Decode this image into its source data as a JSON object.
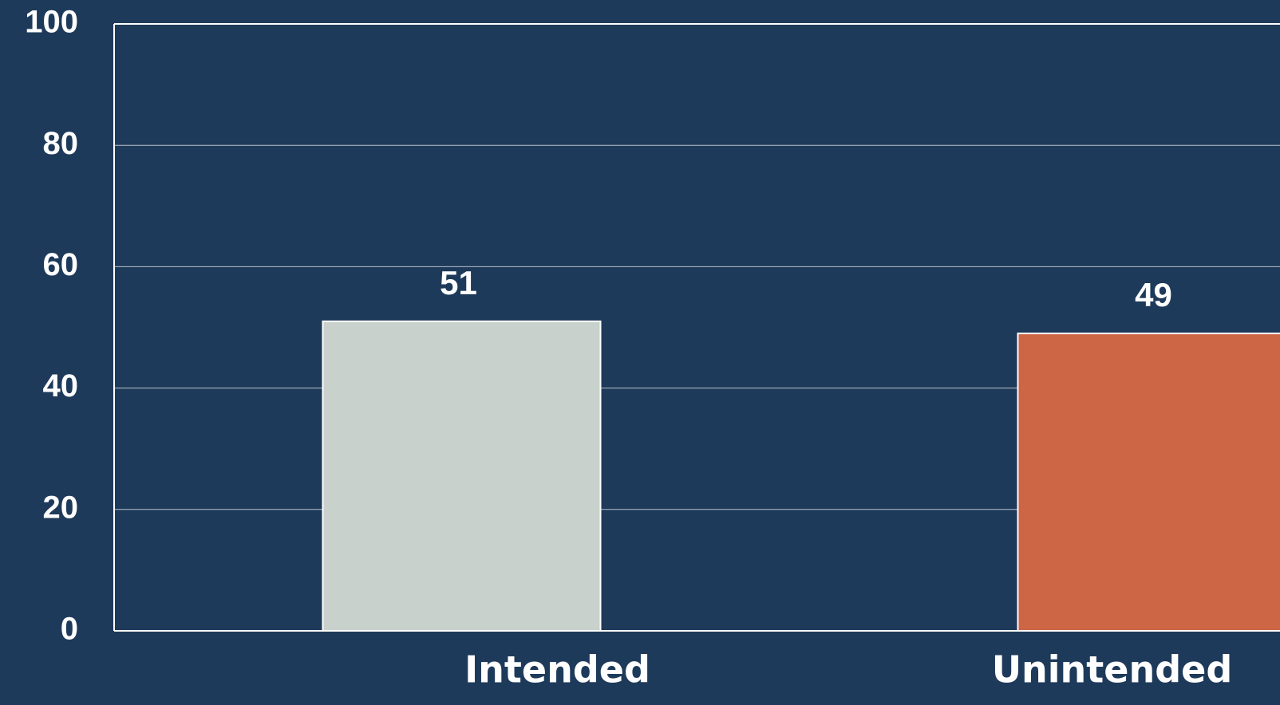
{
  "chart_data": {
    "type": "bar",
    "categories": [
      "Intended",
      "Unintended"
    ],
    "values": [
      51,
      49
    ],
    "colors": [
      "#c8d1cc",
      "#cc6644"
    ],
    "ylim": [
      0,
      100
    ],
    "yticks": [
      0,
      20,
      40,
      60,
      80,
      100
    ],
    "grid": true
  }
}
